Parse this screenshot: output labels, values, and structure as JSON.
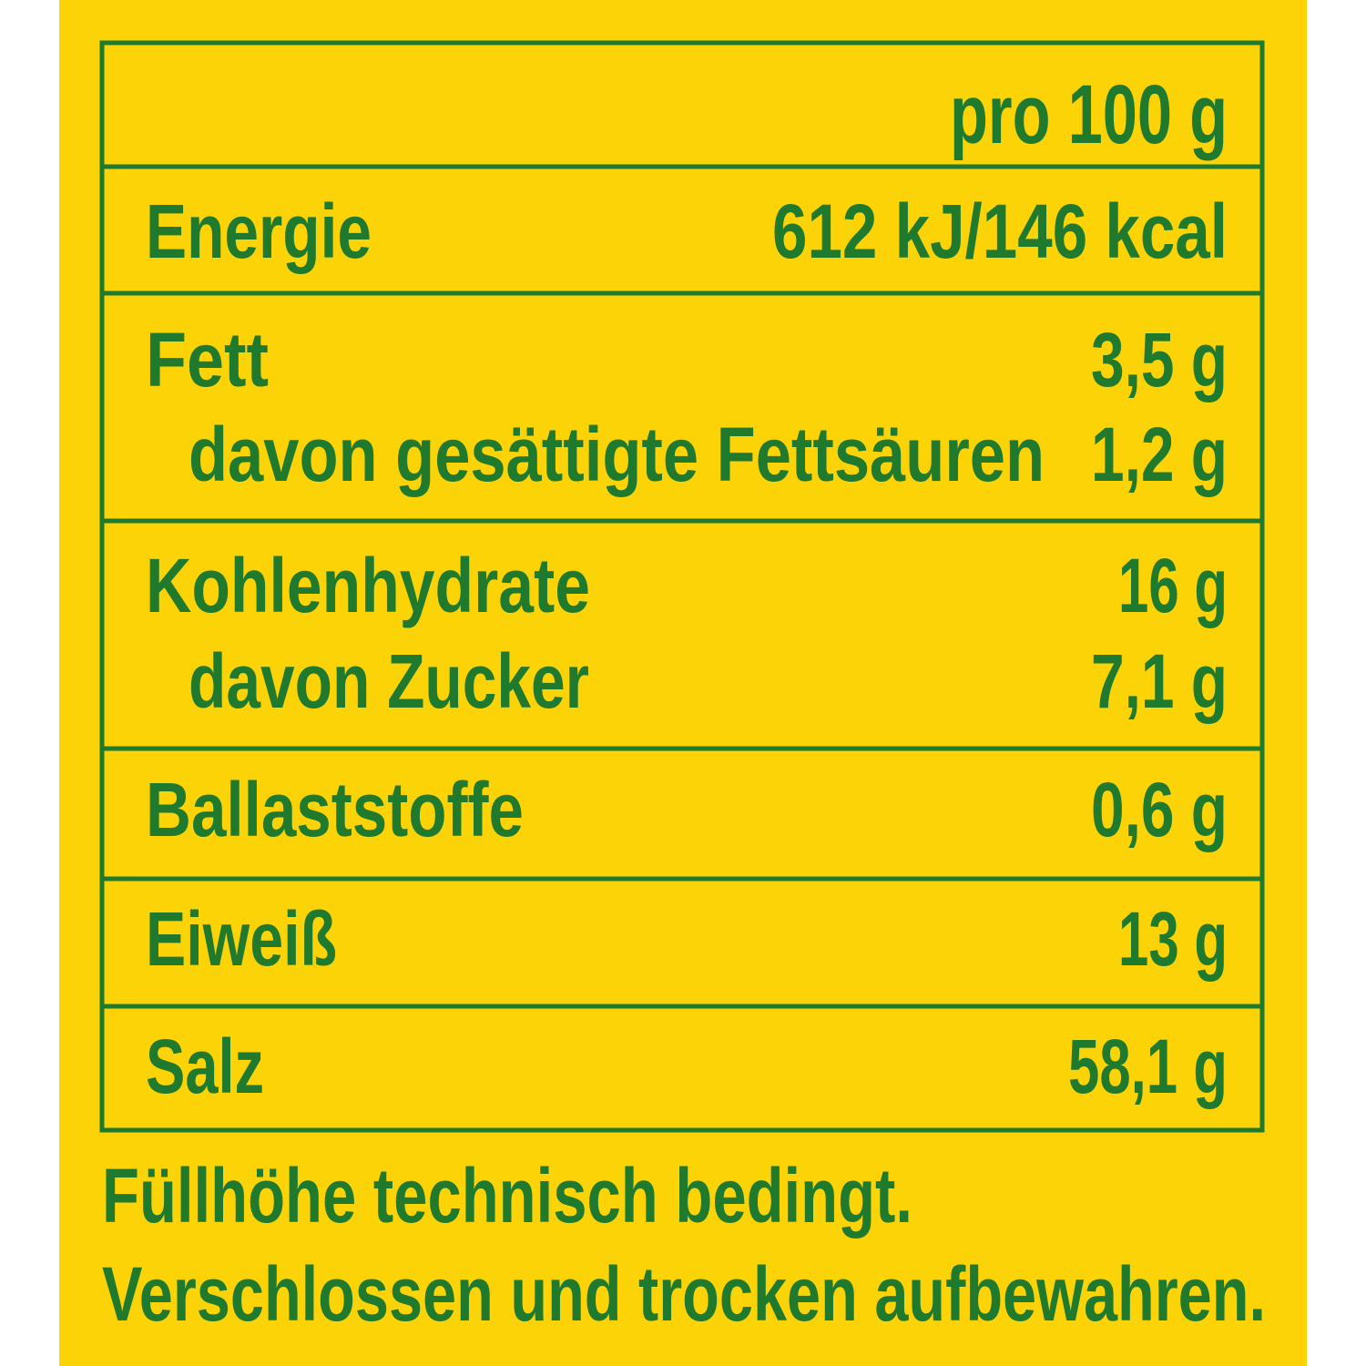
{
  "table": {
    "header": "pro 100 g",
    "groups": [
      {
        "rows": [
          {
            "label": "Energie",
            "value": "612 kJ/146 kcal"
          }
        ]
      },
      {
        "rows": [
          {
            "label": "Fett",
            "value": "3,5 g"
          },
          {
            "label": "davon gesättigte Fettsäuren",
            "value": "1,2 g"
          }
        ]
      },
      {
        "rows": [
          {
            "label": "Kohlenhydrate",
            "value": "16 g"
          },
          {
            "label": "davon Zucker",
            "value": "7,1 g"
          }
        ]
      },
      {
        "rows": [
          {
            "label": "Ballaststoffe",
            "value": "0,6 g"
          }
        ]
      },
      {
        "rows": [
          {
            "label": "Eiweiß",
            "value": "13 g"
          }
        ]
      },
      {
        "rows": [
          {
            "label": "Salz",
            "value": "58,1 g"
          }
        ]
      }
    ]
  },
  "footer": [
    "Füllhöhe technisch bedingt.",
    "Verschlossen und trocken aufbewahren."
  ]
}
